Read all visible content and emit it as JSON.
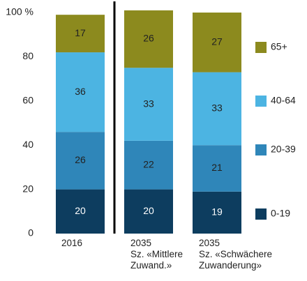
{
  "chart_data": {
    "type": "stacked-bar",
    "categories": [
      "2016",
      "2035\nSz. «Mittlere\nZuwand.»",
      "2035\nSz. «Schwächere\nZuwanderung»"
    ],
    "series": [
      {
        "name": "0-19",
        "color": "#0d3d5f",
        "values": [
          20,
          20,
          19
        ]
      },
      {
        "name": "20-39",
        "color": "#2f86b9",
        "values": [
          26,
          22,
          21
        ]
      },
      {
        "name": "40-64",
        "color": "#4cb4e2",
        "values": [
          36,
          33,
          33
        ]
      },
      {
        "name": "65+",
        "color": "#8c8a1e",
        "values": [
          17,
          26,
          27
        ]
      }
    ],
    "ylim": [
      0,
      100
    ],
    "yticks": [
      0,
      20,
      40,
      60,
      80,
      {
        "value": 100,
        "label": "100 %"
      }
    ]
  }
}
